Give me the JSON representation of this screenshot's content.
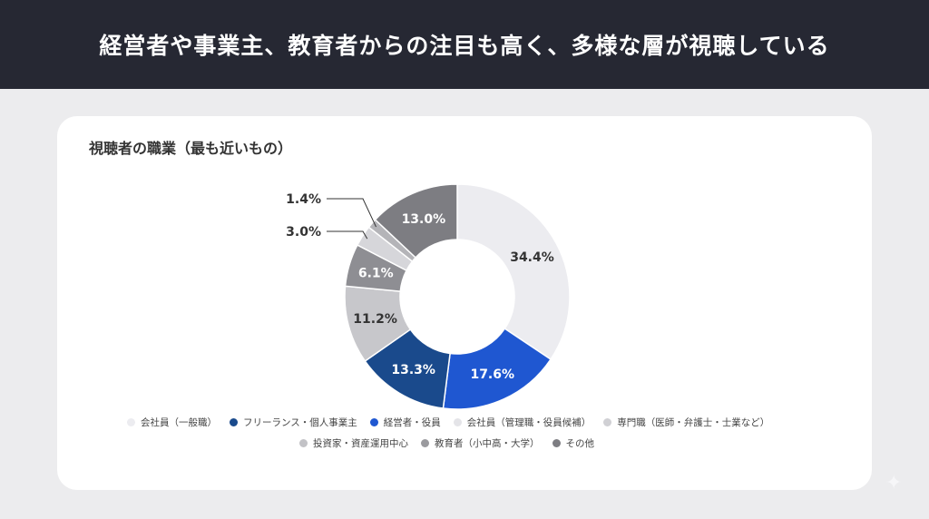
{
  "header": {
    "title": "経営者や事業主、教育者からの注目も高く、多様な層が視聴している"
  },
  "chart_data": {
    "type": "pie",
    "variant": "donut",
    "title": "視聴者の職業（最も近いもの）",
    "legend_position": "bottom",
    "slices": [
      {
        "label": "会社員（一般職）",
        "value": 34.4,
        "value_label": "34.4%",
        "color": "#ececf0",
        "text_color": "#333333"
      },
      {
        "label": "経営者・役員",
        "value": 17.6,
        "value_label": "17.6%",
        "color": "#1f57d1",
        "text_color": "#ffffff"
      },
      {
        "label": "フリーランス・個人事業主",
        "value": 13.3,
        "value_label": "13.3%",
        "color": "#1a4a8c",
        "text_color": "#ffffff"
      },
      {
        "label": "会社員（管理職・役員候補）",
        "value": 11.2,
        "value_label": "11.2%",
        "color": "#c7c7cb",
        "text_color": "#333333"
      },
      {
        "label": "専門職（医師・弁護士・士業など）",
        "value": 6.1,
        "value_label": "6.1%",
        "color": "#8e8e93",
        "text_color": "#ffffff"
      },
      {
        "label": "投資家・資産運用中心",
        "value": 3.0,
        "value_label": "3.0%",
        "color": "#d6d6da",
        "text_color": "#333333"
      },
      {
        "label": "教育者（小中高・大学）",
        "value": 1.4,
        "value_label": "1.4%",
        "color": "#b4b4b8",
        "text_color": "#333333"
      },
      {
        "label": "その他",
        "value": 13.0,
        "value_label": "13.0%",
        "color": "#7d7d82",
        "text_color": "#ffffff"
      }
    ],
    "legend": [
      {
        "label": "会社員（一般職）",
        "color": "#ececf0"
      },
      {
        "label": "フリーランス・個人事業主",
        "color": "#1a4a8c"
      },
      {
        "label": "経営者・役員",
        "color": "#1f57d1"
      },
      {
        "label": "会社員（管理職・役員候補）",
        "color": "#e4e4e8"
      },
      {
        "label": "専門職（医師・弁護士・士業など）",
        "color": "#d0d0d4"
      },
      {
        "label": "投資家・資産運用中心",
        "color": "#c2c2c6"
      },
      {
        "label": "教育者（小中高・大学）",
        "color": "#9a9a9e"
      },
      {
        "label": "その他",
        "color": "#7d7d82"
      }
    ]
  }
}
